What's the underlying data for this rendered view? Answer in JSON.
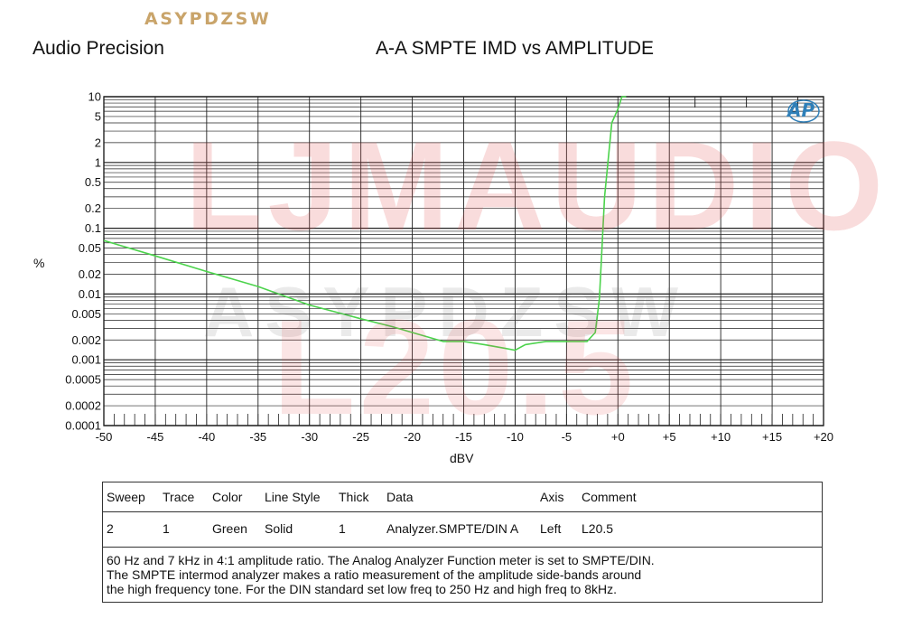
{
  "header": {
    "brand": "ASYPDZSW",
    "vendor": "Audio Precision",
    "plot_title": "A-A SMPTE IMD vs AMPLITUDE"
  },
  "watermarks": {
    "line1": "LJMAUDIO",
    "line2": "ASYPDZSW",
    "line3": "L20.5"
  },
  "logo_text": "AP",
  "chart_data": {
    "type": "line",
    "title": "A-A SMPTE IMD vs AMPLITUDE",
    "xlabel": "dBV",
    "ylabel": "%",
    "xlim": [
      -50,
      20
    ],
    "ylim": [
      0.0001,
      10
    ],
    "y_scale": "log",
    "grid": true,
    "x_ticks": [
      -50,
      -45,
      -40,
      -35,
      -30,
      -25,
      -20,
      -15,
      -10,
      -5,
      0,
      5,
      10,
      15,
      20
    ],
    "x_tick_labels": [
      "-50",
      "-45",
      "-40",
      "-35",
      "-30",
      "-25",
      "-20",
      "-15",
      "-10",
      "-5",
      "+0",
      "+5",
      "+10",
      "+15",
      "+20"
    ],
    "y_ticks": [
      10,
      5,
      2,
      1,
      0.5,
      0.2,
      0.1,
      0.05,
      0.02,
      0.01,
      0.005,
      0.002,
      0.001,
      0.0005,
      0.0002,
      0.0001
    ],
    "y_tick_labels": [
      "10",
      "5",
      "2",
      "1",
      "0.5",
      "0.2",
      "0.1",
      "0.05",
      "0.02",
      "0.01",
      "0.005",
      "0.002",
      "0.001",
      "0.0005",
      "0.0002",
      "0.0001"
    ],
    "series": [
      {
        "color": "#4cd34c",
        "x": [
          -50,
          -45,
          -40,
          -35,
          -30,
          -25,
          -22,
          -20,
          -17,
          -15,
          -13,
          -11,
          -10,
          -9,
          -7,
          -5,
          -3,
          -2.2,
          -1.8,
          -1.3,
          -0.6,
          0,
          0.4,
          0.8
        ],
        "y": [
          0.065,
          0.038,
          0.022,
          0.013,
          0.0068,
          0.0042,
          0.0032,
          0.0026,
          0.0019,
          0.0019,
          0.0017,
          0.0015,
          0.0014,
          0.0017,
          0.0019,
          0.0019,
          0.0019,
          0.0026,
          0.0085,
          0.3,
          4.0,
          6.5,
          10,
          10
        ]
      }
    ]
  },
  "legend": {
    "headers": [
      "Sweep",
      "Trace",
      "Color",
      "Line Style",
      "Thick",
      "Data",
      "Axis",
      "Comment"
    ],
    "row": [
      "2",
      "1",
      "Green",
      "Solid",
      "1",
      "Analyzer.SMPTE/DIN A",
      "Left",
      "L20.5"
    ],
    "note_lines": [
      "60 Hz and 7 kHz in 4:1 amplitude ratio.  The Analog Analyzer Function meter is set to SMPTE/DIN.",
      "The SMPTE intermod analyzer makes a ratio measurement of the amplitude side-bands around",
      "the high frequency tone.  For the DIN standard set low freq to 250 Hz and high freq to 8kHz."
    ]
  }
}
